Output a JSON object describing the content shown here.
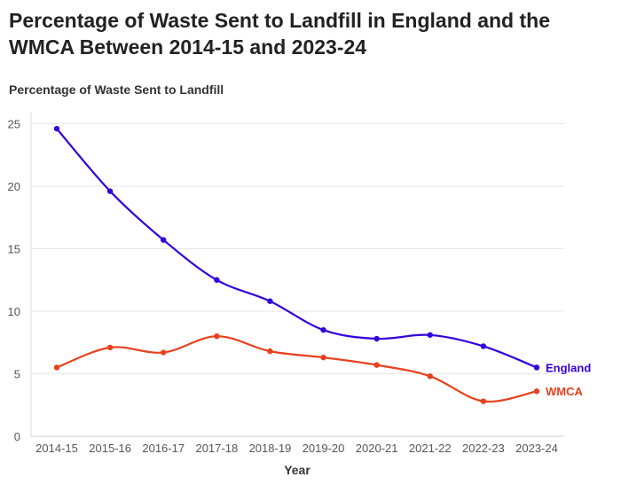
{
  "chart_data": {
    "type": "line",
    "title": "Percentage of Waste Sent to Landfill in England and the WMCA Between 2014-15 and 2023-24",
    "ylabel": "Percentage of Waste Sent to Landfill",
    "xlabel": "Year",
    "categories": [
      "2014-15",
      "2015-16",
      "2016-17",
      "2017-18",
      "2018-19",
      "2019-20",
      "2020-21",
      "2021-22",
      "2022-23",
      "2023-24"
    ],
    "ylim": [
      0,
      26
    ],
    "yticks": [
      0,
      5,
      10,
      15,
      20,
      25
    ],
    "grid": true,
    "series": [
      {
        "name": "England",
        "color": "#3300dd",
        "values": [
          24.6,
          19.6,
          15.7,
          12.5,
          10.8,
          8.5,
          7.8,
          8.1,
          7.2,
          5.5
        ]
      },
      {
        "name": "WMCA",
        "color": "#e8401c",
        "values": [
          5.5,
          7.1,
          6.7,
          8.0,
          6.8,
          6.3,
          5.7,
          4.8,
          2.8,
          3.6
        ]
      }
    ]
  }
}
